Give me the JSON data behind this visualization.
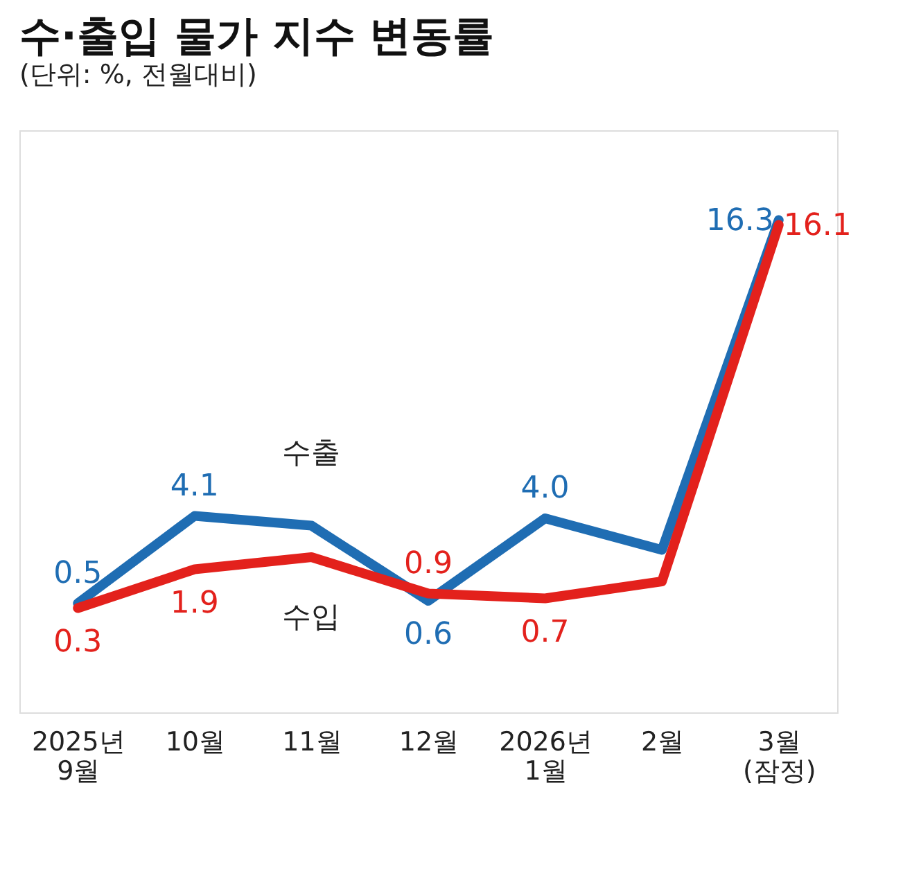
{
  "chart_data": {
    "type": "line",
    "title": "수·출입 물가 지수 변동률",
    "subtitle": "(단위: %, 전월대비)",
    "categories": [
      "2025년\n9월",
      "10월",
      "11월",
      "12월",
      "2026년\n1월",
      "2월",
      "3월\n(잠정)"
    ],
    "series": [
      {
        "name": "수출",
        "color": "#1f6db3",
        "values": [
          0.5,
          4.1,
          3.7,
          0.6,
          4.0,
          2.7,
          16.3
        ],
        "value_labels": [
          "0.5",
          "4.1",
          null,
          "0.6",
          "4.0",
          null,
          "16.3"
        ]
      },
      {
        "name": "수입",
        "color": "#e3211c",
        "values": [
          0.3,
          1.9,
          2.4,
          0.9,
          0.7,
          1.4,
          16.1
        ],
        "value_labels": [
          "0.3",
          "1.9",
          null,
          "0.9",
          "0.7",
          null,
          "16.1"
        ]
      }
    ],
    "grid": false,
    "marker": "none",
    "line_style": "solid"
  }
}
